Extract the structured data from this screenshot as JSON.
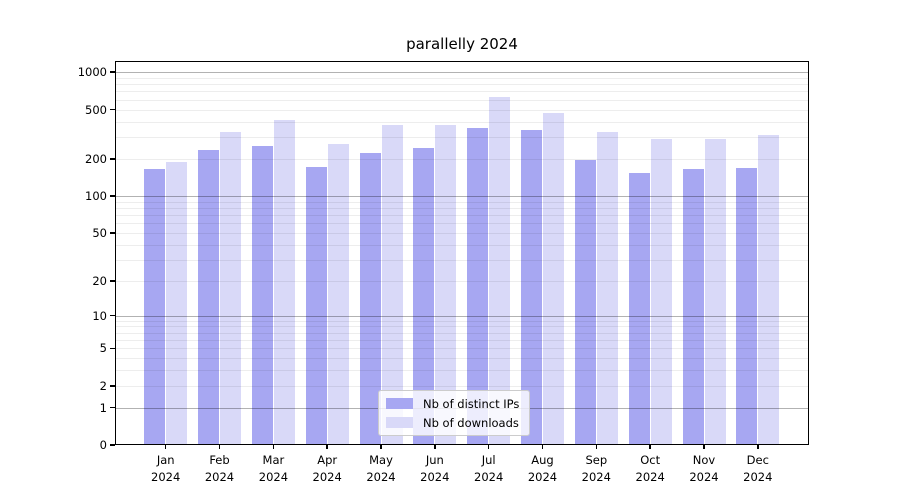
{
  "chart_data": {
    "type": "bar",
    "title": "parallelly 2024",
    "categories": [
      "Jan",
      "Feb",
      "Mar",
      "Apr",
      "May",
      "Jun",
      "Jul",
      "Aug",
      "Sep",
      "Oct",
      "Nov",
      "Dec"
    ],
    "category_year": "2024",
    "series": [
      {
        "name": "Nb of distinct IPs",
        "color": "#a7a7f2",
        "values": [
          166,
          238,
          256,
          171,
          224,
          245,
          358,
          340,
          197,
          154,
          167,
          169
        ]
      },
      {
        "name": "Nb of downloads",
        "color": "#d9d9f8",
        "values": [
          187,
          331,
          410,
          264,
          372,
          374,
          629,
          467,
          328,
          287,
          288,
          313
        ]
      }
    ],
    "yscale": "log1p",
    "ylim": [
      0,
      1230
    ],
    "yticks": [
      0,
      1,
      2,
      5,
      10,
      20,
      50,
      100,
      200,
      500,
      1000
    ],
    "grid": true,
    "legend_position": "lower-center",
    "colors": {
      "major_gridline": "#b0b0b0",
      "minor_gridline": "#ececec",
      "spine": "#000000",
      "text": "#000000"
    }
  }
}
